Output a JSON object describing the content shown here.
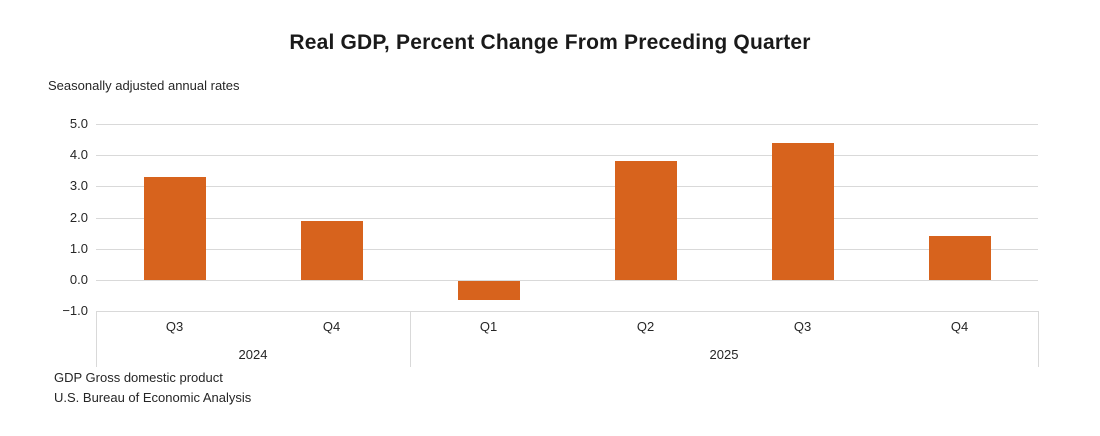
{
  "chart_data": {
    "type": "bar",
    "title": "Real GDP, Percent Change From Preceding Quarter",
    "subtitle": "Seasonally adjusted annual rates",
    "categories": [
      "Q3",
      "Q4",
      "Q1",
      "Q2",
      "Q3",
      "Q4"
    ],
    "values": [
      3.3,
      1.9,
      -0.6,
      3.8,
      4.4,
      1.4
    ],
    "groups": [
      {
        "label": "2024",
        "span": 2
      },
      {
        "label": "2025",
        "span": 4
      }
    ],
    "ylim": [
      -1.0,
      5.0
    ],
    "ytick_step": 1.0,
    "ytick_labels": [
      "5.0",
      "4.0",
      "3.0",
      "2.0",
      "1.0",
      "0.0",
      "−1.0"
    ],
    "grid": true,
    "legend": false,
    "bar_color": "#d7631d",
    "grid_color": "#d9d9d9",
    "footnotes": [
      "GDP Gross domestic product",
      "U.S. Bureau of Economic Analysis"
    ]
  }
}
